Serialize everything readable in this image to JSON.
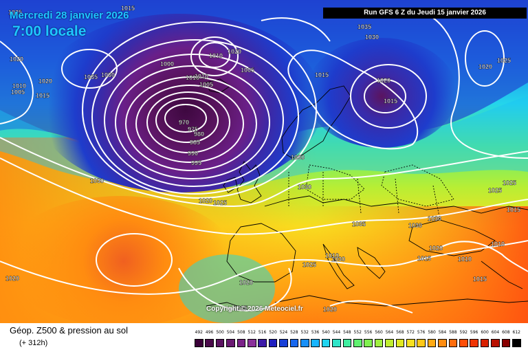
{
  "header": {
    "date": "Mercredi 28 janvier 2026",
    "time": "7:00 locale",
    "run": "Run GFS 6 Z du Jeudi 15 janvier 2026"
  },
  "footer": {
    "product": "Géop. Z500 & pression au sol",
    "lead": "(+ 312h)",
    "copyright": "Copyright © 2026 Meteociel.fr"
  },
  "legend": {
    "labels": [
      "492",
      "496",
      "500",
      "504",
      "508",
      "512",
      "516",
      "520",
      "524",
      "528",
      "532",
      "536",
      "540",
      "544",
      "548",
      "552",
      "556",
      "560",
      "564",
      "568",
      "572",
      "576",
      "580",
      "584",
      "588",
      "592",
      "596",
      "600",
      "604",
      "608",
      "612"
    ],
    "colors": [
      "#3a0038",
      "#4a0a4a",
      "#5a1260",
      "#6a1a72",
      "#7a2288",
      "#8a309a",
      "#3c1aa8",
      "#2020c0",
      "#1840d8",
      "#1868ee",
      "#1890f8",
      "#18b4ff",
      "#20d4f0",
      "#30e4c8",
      "#40eea0",
      "#60f070",
      "#80f050",
      "#a0f040",
      "#c0ee30",
      "#e0e820",
      "#f8e020",
      "#ffc818",
      "#ffaa14",
      "#ff8c10",
      "#ff6c0c",
      "#ff4e08",
      "#f03404",
      "#d82000",
      "#b81000",
      "#880000",
      "#000000"
    ]
  },
  "isobars": [
    {
      "text": "1025",
      "pos": "nw-edge"
    },
    {
      "text": "1020",
      "pos": "w1"
    },
    {
      "text": "1020",
      "pos": "w2"
    },
    {
      "text": "1010",
      "pos": "w3"
    },
    {
      "text": "1005",
      "pos": "w4"
    },
    {
      "text": "1015",
      "pos": "w5"
    },
    {
      "text": "1035",
      "pos": "hi-w"
    },
    {
      "text": "1030",
      "pos": "hi-w2"
    },
    {
      "text": "1015",
      "pos": "n1"
    },
    {
      "text": "1000",
      "pos": "n2"
    },
    {
      "text": "1010",
      "pos": "n3"
    },
    {
      "text": "1010",
      "pos": "n4"
    },
    {
      "text": "1020",
      "pos": "n5"
    },
    {
      "text": "1005",
      "pos": "n6"
    },
    {
      "text": "1010",
      "pos": "low1"
    },
    {
      "text": "1005",
      "pos": "low2"
    },
    {
      "text": "970",
      "pos": "low3"
    },
    {
      "text": "975",
      "pos": "low4"
    },
    {
      "text": "980",
      "pos": "low5"
    },
    {
      "text": "985",
      "pos": "low6"
    },
    {
      "text": "990",
      "pos": "low7"
    },
    {
      "text": "995",
      "pos": "low8"
    },
    {
      "text": "1030",
      "pos": "atl1"
    },
    {
      "text": "1020",
      "pos": "atl2"
    },
    {
      "text": "1025",
      "pos": "atl3"
    },
    {
      "text": "1035",
      "pos": "ne1"
    },
    {
      "text": "1030",
      "pos": "ne2"
    },
    {
      "text": "1015",
      "pos": "sc1"
    },
    {
      "text": "1020",
      "pos": "ru1"
    },
    {
      "text": "1015",
      "pos": "ru2"
    },
    {
      "text": "1025",
      "pos": "ne3"
    },
    {
      "text": "1020",
      "pos": "ne4"
    },
    {
      "text": "1030",
      "pos": "eu1"
    },
    {
      "text": "1030",
      "pos": "eu2"
    },
    {
      "text": "1035",
      "pos": "eu3"
    },
    {
      "text": "1030",
      "pos": "eu4"
    },
    {
      "text": "1030",
      "pos": "eu5"
    },
    {
      "text": "1025",
      "pos": "e1"
    },
    {
      "text": "1025",
      "pos": "e2"
    },
    {
      "text": "1015",
      "pos": "e3"
    },
    {
      "text": "1010",
      "pos": "e4"
    },
    {
      "text": "1020",
      "pos": "e5"
    },
    {
      "text": "1015",
      "pos": "e6"
    },
    {
      "text": "1010",
      "pos": "e7"
    },
    {
      "text": "1015",
      "pos": "e8"
    },
    {
      "text": "1010",
      "pos": "med1"
    },
    {
      "text": "1030",
      "pos": "med2"
    },
    {
      "text": "1025",
      "pos": "med3"
    },
    {
      "text": "1020",
      "pos": "sw1"
    },
    {
      "text": "1015",
      "pos": "sw2"
    },
    {
      "text": "1020",
      "pos": "sw3"
    },
    {
      "text": "1020",
      "pos": "sw4"
    }
  ]
}
